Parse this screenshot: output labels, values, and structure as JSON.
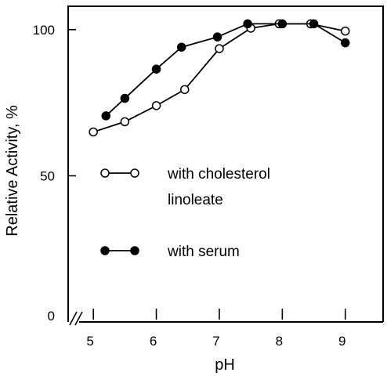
{
  "chart_data": {
    "type": "line",
    "title": "",
    "xlabel": "pH",
    "ylabel": "Relative Activity, %",
    "xlim": [
      4.6,
      9.6
    ],
    "ylim": [
      0,
      108
    ],
    "x_ticks": [
      "5",
      "6",
      "7",
      "8",
      "9"
    ],
    "y_ticks": [
      "0",
      "50",
      "100"
    ],
    "y_axis_break": true,
    "grid": false,
    "legend_position": "center-left",
    "series": [
      {
        "name": "with cholesterol linoleate",
        "name_lines": [
          "with cholesterol",
          "linoleate"
        ],
        "marker": "open-circle",
        "x": [
          5.0,
          5.5,
          6.0,
          6.45,
          7.0,
          7.5,
          7.95,
          8.45,
          9.0
        ],
        "y": [
          65,
          68.5,
          74,
          79.5,
          93.5,
          100.5,
          102,
          102,
          99.5
        ]
      },
      {
        "name": "with serum",
        "marker": "filled-circle",
        "x": [
          5.2,
          5.5,
          6.0,
          6.4,
          6.97,
          7.45,
          8.0,
          8.5,
          9.0
        ],
        "y": [
          70.5,
          76.5,
          86.5,
          94,
          97.5,
          102,
          102,
          102,
          95.5
        ]
      }
    ]
  }
}
